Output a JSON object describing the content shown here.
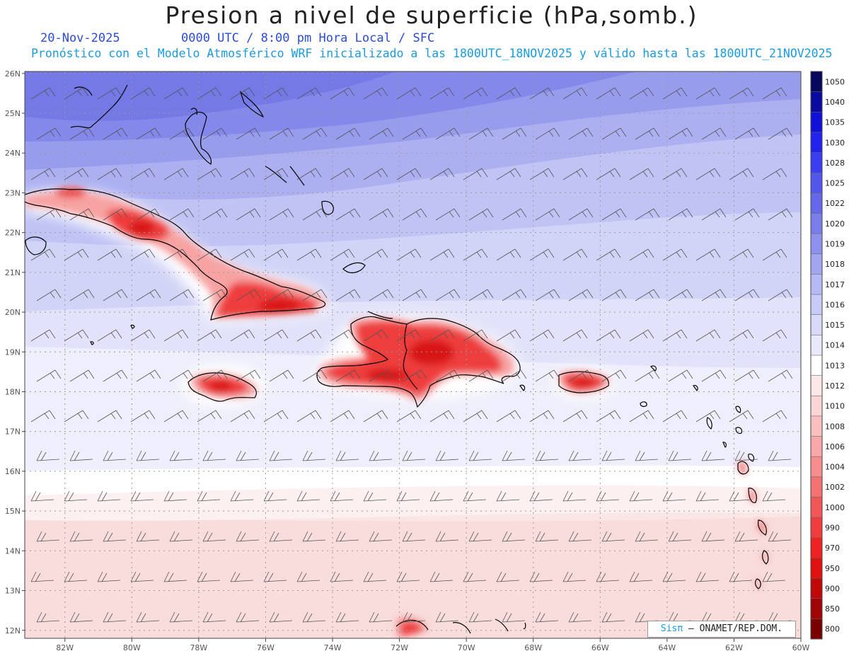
{
  "title": "Presion a nivel de superficie (hPa,somb.)",
  "date": "20-Nov-2025",
  "valid_time": "0000 UTC / 8:00 pm Hora Local / SFC",
  "subtitle": "Pronóstico con el Modelo Atmosférico WRF inicializado a las 1800UTC_18NOV2025 y válido hasta las  1800UTC_21NOV2025",
  "credit": {
    "brand": "Sisπ",
    "text": " – ONAMET/REP.DOM."
  },
  "map": {
    "lon_range": [
      -83.2,
      -60.0
    ],
    "lat_range": [
      11.8,
      26.05
    ],
    "lon_ticks": [
      "82W",
      "80W",
      "78W",
      "76W",
      "74W",
      "72W",
      "70W",
      "68W",
      "66W",
      "64W",
      "62W",
      "60W"
    ],
    "lat_ticks": [
      "12N",
      "13N",
      "14N",
      "15N",
      "16N",
      "17N",
      "18N",
      "19N",
      "20N",
      "21N",
      "22N",
      "23N",
      "24N",
      "25N",
      "26N"
    ],
    "grid": "dotted every 2° lon / 1° lat",
    "regions": [
      "Cuba",
      "Jamaica",
      "Hispaniola",
      "Puerto Rico",
      "Bahamas",
      "Lesser Antilles"
    ]
  },
  "colorbar": {
    "labels": [
      "1050",
      "1040",
      "1035",
      "1030",
      "1028",
      "1025",
      "1022",
      "1020",
      "1019",
      "1018",
      "1017",
      "1016",
      "1015",
      "1014",
      "1013",
      "1012",
      "1010",
      "1008",
      "1006",
      "1004",
      "1002",
      "1000",
      "990",
      "970",
      "950",
      "900",
      "850",
      "800"
    ],
    "colors": [
      "#07075e",
      "#0a0aa0",
      "#1010d8",
      "#2222ee",
      "#3a3ef0",
      "#5256ec",
      "#6468ea",
      "#7a7eea",
      "#8e92ee",
      "#a2a6f0",
      "#b6baf4",
      "#c8cbf6",
      "#d8daf8",
      "#e8e9fb",
      "#ffffff",
      "#fde8e8",
      "#fcd6d6",
      "#fac0c0",
      "#f8a8a8",
      "#f68e8e",
      "#f47272",
      "#f25656",
      "#f03c3c",
      "#ee2222",
      "#e01010",
      "#c00808",
      "#a00404",
      "#7a0000"
    ]
  },
  "colors": {
    "title": "#222222",
    "date_line": "#2a4bdc",
    "subtitle_line": "#1a9be0"
  }
}
